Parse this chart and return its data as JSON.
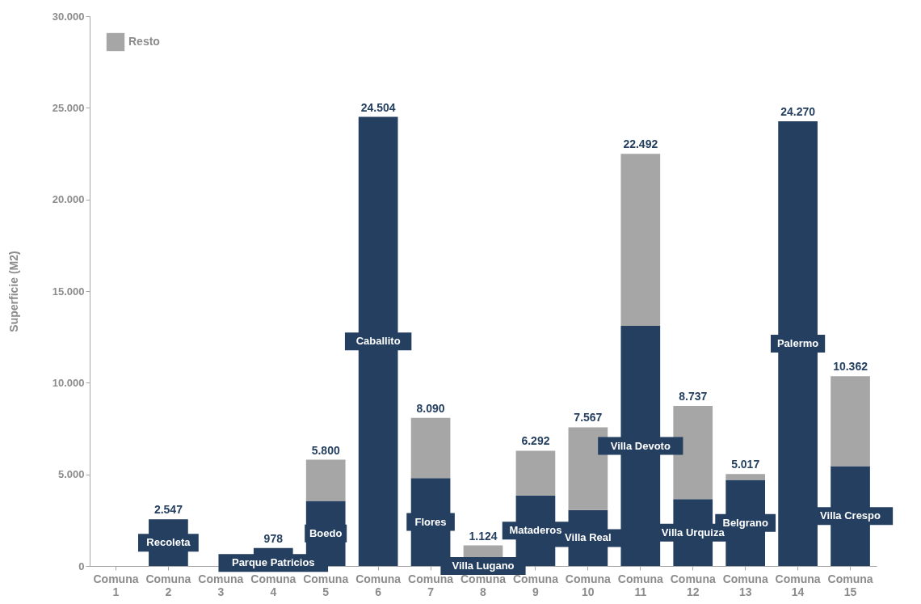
{
  "chart_data": {
    "type": "bar",
    "stacked": true,
    "ylabel": "Superficie (M2)",
    "categories": [
      "Comuna 1",
      "Comuna 2",
      "Comuna 3",
      "Comuna 4",
      "Comuna 5",
      "Comuna 6",
      "Comuna 7",
      "Comuna 8",
      "Comuna 9",
      "Comuna 10",
      "Comuna 11",
      "Comuna 12",
      "Comuna 13",
      "Comuna 14",
      "Comuna 15"
    ],
    "series": [
      {
        "color": "#243f60",
        "values": [
          null,
          2547,
          null,
          978,
          3550,
          24504,
          4800,
          null,
          3850,
          3050,
          13100,
          3650,
          4700,
          24270,
          5450
        ],
        "value_labels": [
          null,
          "Recoleta",
          null,
          "Parque Patricios",
          "Boedo",
          "Caballito",
          "Flores",
          "Villa Lugano",
          "Mataderos",
          "Villa Real",
          "Villa Devoto",
          "Villa Urquiza",
          "Belgrano",
          "Palermo",
          "Villa Crespo"
        ]
      },
      {
        "name": "Resto",
        "color": "#a6a6a6",
        "values": [
          null,
          null,
          null,
          null,
          2250,
          null,
          3290,
          1124,
          2442,
          4517,
          9392,
          5087,
          317,
          null,
          4912
        ]
      }
    ],
    "totals": [
      null,
      "2.547",
      null,
      "978",
      "5.800",
      "24.504",
      "8.090",
      "1.124",
      "6.292",
      "7.567",
      "22.492",
      "8.737",
      "5.017",
      "24.270",
      "10.362"
    ],
    "ylim": [
      0,
      30000
    ],
    "yticks": [
      {
        "value": 0,
        "label": "0"
      },
      {
        "value": 5000,
        "label": "5.000"
      },
      {
        "value": 10000,
        "label": "10.000"
      },
      {
        "value": 15000,
        "label": "15.000"
      },
      {
        "value": 20000,
        "label": "20.000"
      },
      {
        "value": 25000,
        "label": "25.000"
      },
      {
        "value": 30000,
        "label": "30.000"
      }
    ],
    "grid": false,
    "legend": "top left"
  }
}
